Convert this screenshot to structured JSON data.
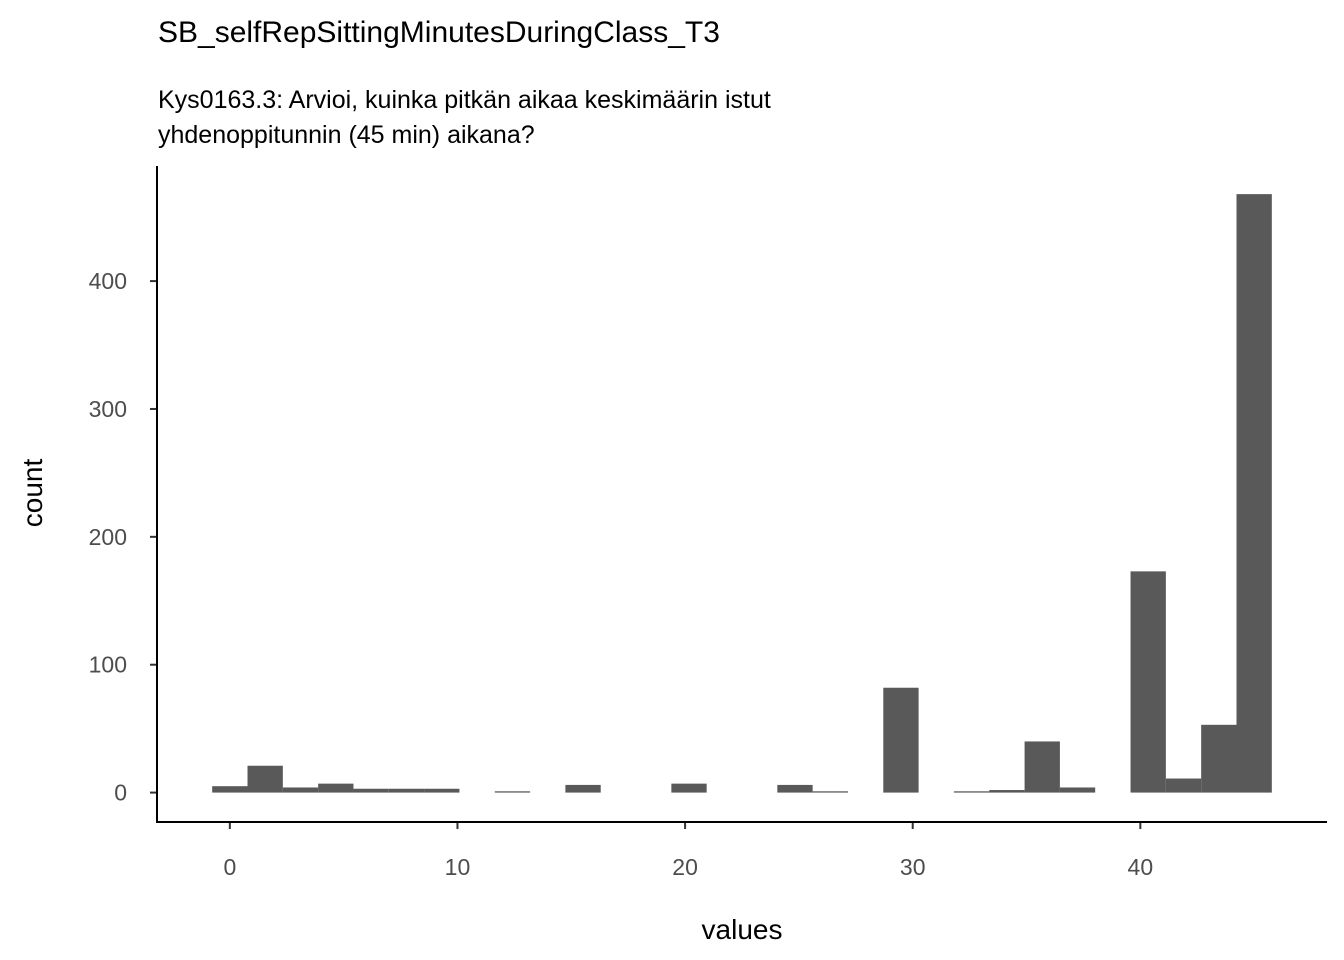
{
  "chart_data": {
    "type": "bar",
    "title": "SB_selfRepSittingMinutesDuringClass_T3",
    "subtitle_lines": [
      "Kys0163.3: Arvioi, kuinka pitkän aikaa keskimäärin istut",
      "yhdenoppitunnin (45 min) aikana?"
    ],
    "xlabel": "values",
    "ylabel": "count",
    "xlim": [
      -3.2,
      48.2
    ],
    "ylim": [
      -23,
      490
    ],
    "x_ticks": [
      0,
      10,
      20,
      30,
      40
    ],
    "y_ticks": [
      0,
      100,
      200,
      300,
      400
    ],
    "grid": false,
    "bin_width": 1.5517,
    "bins": [
      {
        "x": 0.0,
        "count": 5
      },
      {
        "x": 1.552,
        "count": 21
      },
      {
        "x": 3.103,
        "count": 4
      },
      {
        "x": 4.655,
        "count": 7
      },
      {
        "x": 6.207,
        "count": 3
      },
      {
        "x": 7.759,
        "count": 3
      },
      {
        "x": 9.31,
        "count": 3
      },
      {
        "x": 10.862,
        "count": 0
      },
      {
        "x": 12.414,
        "count": 1
      },
      {
        "x": 13.966,
        "count": 0
      },
      {
        "x": 15.517,
        "count": 6
      },
      {
        "x": 17.069,
        "count": 0
      },
      {
        "x": 18.621,
        "count": 0
      },
      {
        "x": 20.172,
        "count": 7
      },
      {
        "x": 21.724,
        "count": 0
      },
      {
        "x": 23.276,
        "count": 0
      },
      {
        "x": 24.828,
        "count": 6
      },
      {
        "x": 26.379,
        "count": 1
      },
      {
        "x": 27.931,
        "count": 0
      },
      {
        "x": 29.483,
        "count": 82
      },
      {
        "x": 31.034,
        "count": 0
      },
      {
        "x": 32.586,
        "count": 1
      },
      {
        "x": 34.138,
        "count": 2
      },
      {
        "x": 35.69,
        "count": 40
      },
      {
        "x": 37.241,
        "count": 4
      },
      {
        "x": 38.793,
        "count": 0
      },
      {
        "x": 40.345,
        "count": 173
      },
      {
        "x": 41.897,
        "count": 11
      },
      {
        "x": 43.448,
        "count": 53
      },
      {
        "x": 45.0,
        "count": 468
      }
    ]
  }
}
